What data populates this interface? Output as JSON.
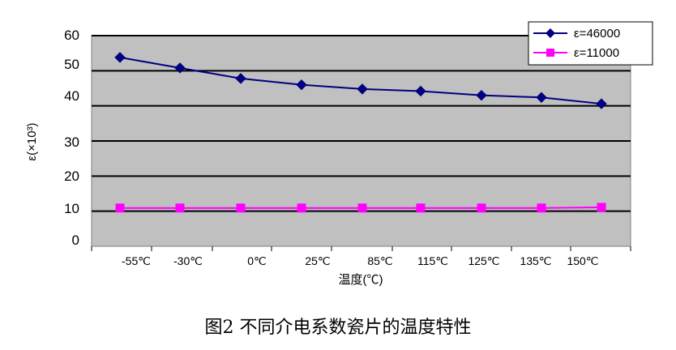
{
  "caption": "图2   不同介电系数瓷片的温度特性",
  "chart_data": {
    "type": "line",
    "xlabel": "温度(℃)",
    "ylabel": "ε(×10³)",
    "categories": [
      "-55℃",
      "-30℃",
      "0℃",
      "25℃",
      "85℃",
      "115℃",
      "125℃",
      "135℃",
      "150℃"
    ],
    "ylim": [
      0,
      60
    ],
    "yticks": [
      0,
      10,
      20,
      30,
      40,
      50,
      60
    ],
    "grid": true,
    "legend_position": "top-right",
    "series": [
      {
        "name": "ε=46000",
        "color": "#000080",
        "marker": "diamond",
        "values": [
          53.8,
          50.8,
          47.8,
          46.0,
          44.8,
          44.2,
          43.0,
          42.4,
          40.6
        ]
      },
      {
        "name": "ε=11000",
        "color": "#ff00ff",
        "marker": "square",
        "values": [
          10.9,
          10.9,
          10.9,
          10.9,
          10.9,
          10.9,
          10.9,
          10.9,
          11.1
        ]
      }
    ]
  }
}
